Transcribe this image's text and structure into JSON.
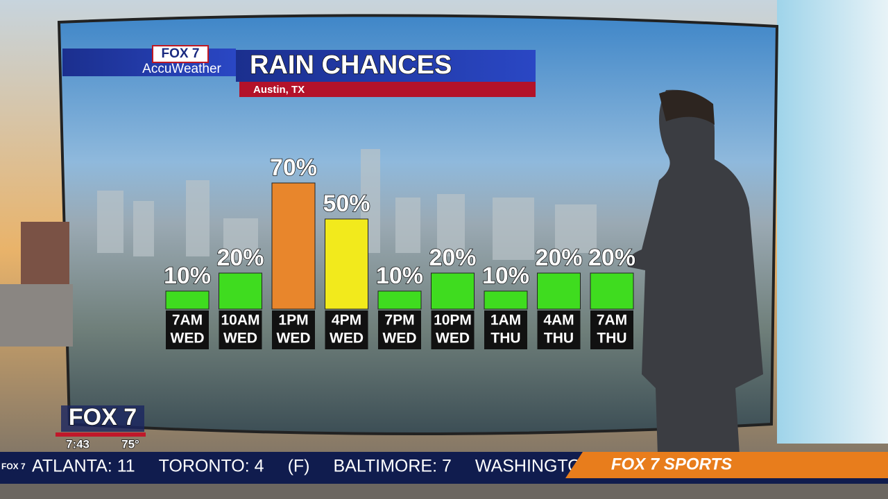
{
  "chart_data": {
    "type": "bar",
    "title": "RAIN CHANCES",
    "subtitle": "Austin, TX",
    "categories": [
      [
        "7AM",
        "WED"
      ],
      [
        "10AM",
        "WED"
      ],
      [
        "1PM",
        "WED"
      ],
      [
        "4PM",
        "WED"
      ],
      [
        "7PM",
        "WED"
      ],
      [
        "10PM",
        "WED"
      ],
      [
        "1AM",
        "THU"
      ],
      [
        "4AM",
        "THU"
      ],
      [
        "7AM",
        "THU"
      ]
    ],
    "values": [
      10,
      20,
      70,
      50,
      10,
      20,
      10,
      20,
      20
    ],
    "value_labels": [
      "10%",
      "20%",
      "70%",
      "50%",
      "10%",
      "20%",
      "10%",
      "20%",
      "20%"
    ],
    "colors": [
      "#3fdc1f",
      "#3fdc1f",
      "#e8862c",
      "#f2ea1c",
      "#3fdc1f",
      "#3fdc1f",
      "#3fdc1f",
      "#3fdc1f",
      "#3fdc1f"
    ]
  },
  "branding": {
    "logo": "FOX 7",
    "sponsor": "AccuWeather"
  },
  "bug": {
    "logo": "FOX 7",
    "time": "7:43",
    "temperature": "75°"
  },
  "ticker": {
    "items": [
      "ATLANTA: 11",
      "TORONTO: 4",
      "(F)",
      "BALTIMORE: 7",
      "WASHINGTON"
    ],
    "logo": "FOX 7",
    "section": "FOX 7 SPORTS"
  }
}
